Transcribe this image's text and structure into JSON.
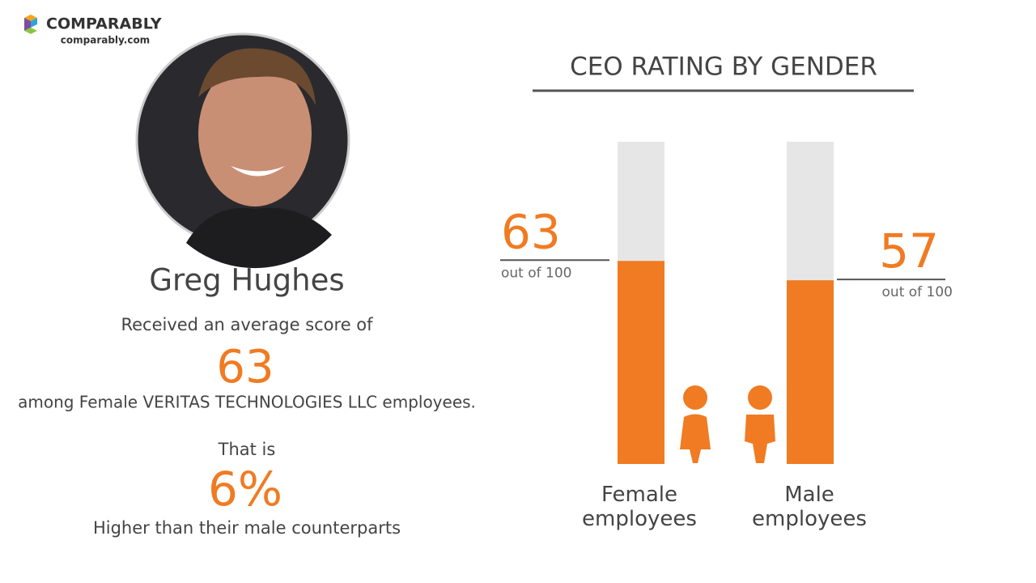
{
  "header": {
    "brand": "COMPARABLY",
    "site": "comparably.com"
  },
  "summary": {
    "name": "Greg Hughes",
    "intro": "Received an average score of",
    "score": 63,
    "group": "among Female VERITAS TECHNOLOGIES LLC employees.",
    "lead": "That is",
    "difference": "6%",
    "comparison": "Higher than their male counterparts"
  },
  "chart_data": {
    "type": "bar",
    "title": "CEO RATING BY GENDER",
    "categories": [
      "Female employees",
      "Male employees"
    ],
    "values": [
      63,
      57
    ],
    "value_notes": [
      "out of 100",
      "out of 100"
    ],
    "color": "#f07b22",
    "track_color": "#e6e6e6",
    "ylim": [
      0,
      100
    ]
  }
}
